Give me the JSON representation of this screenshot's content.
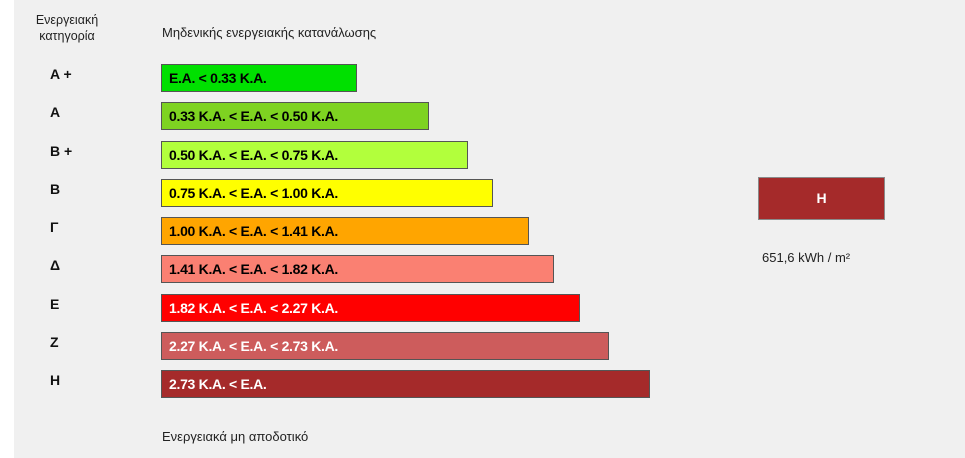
{
  "header": {
    "category_line1": "Ενεργειακή",
    "category_line2": "κατηγορία",
    "top_note": "Μηδενικής ενεργειακής κατανάλωσης",
    "bottom_note": "Ενεργειακά μη αποδοτικό"
  },
  "categories": [
    {
      "label": "A +",
      "range": "E.A. < 0.33 K.A.",
      "color": "#00e000",
      "text_color": "#000000"
    },
    {
      "label": "A",
      "range": "0.33 K.A. <  E.A. < 0.50 K.A.",
      "color": "#7ed321",
      "text_color": "#000000"
    },
    {
      "label": "B +",
      "range": "0.50 K.A. <  E.A. < 0.75 K.A.",
      "color": "#b2ff3c",
      "text_color": "#000000"
    },
    {
      "label": "B",
      "range": "0.75 K.A. <  E.A. < 1.00 K.A.",
      "color": "#ffff00",
      "text_color": "#000000"
    },
    {
      "label": "Γ",
      "range": "1.00 K.A. <  E.A. < 1.41 K.A.",
      "color": "#ffa500",
      "text_color": "#000000"
    },
    {
      "label": "Δ",
      "range": "1.41 K.A. <  E.A. < 1.82 K.A.",
      "color": "#fa8072",
      "text_color": "#000000"
    },
    {
      "label": "E",
      "range": "1.82 K.A. <  E.A. < 2.27 K.A.",
      "color": "#ff0000",
      "text_color": "#ffffff"
    },
    {
      "label": "Z",
      "range": "2.27 K.A. <  E.A. < 2.73 K.A.",
      "color": "#cd5c5c",
      "text_color": "#ffffff"
    },
    {
      "label": "H",
      "range": "2.73 K.A. <  E.A.",
      "color": "#a52a2a",
      "text_color": "#ffffff"
    }
  ],
  "result": {
    "category": "H",
    "value": "651,6 kWh / m²",
    "color": "#a52a2a"
  }
}
